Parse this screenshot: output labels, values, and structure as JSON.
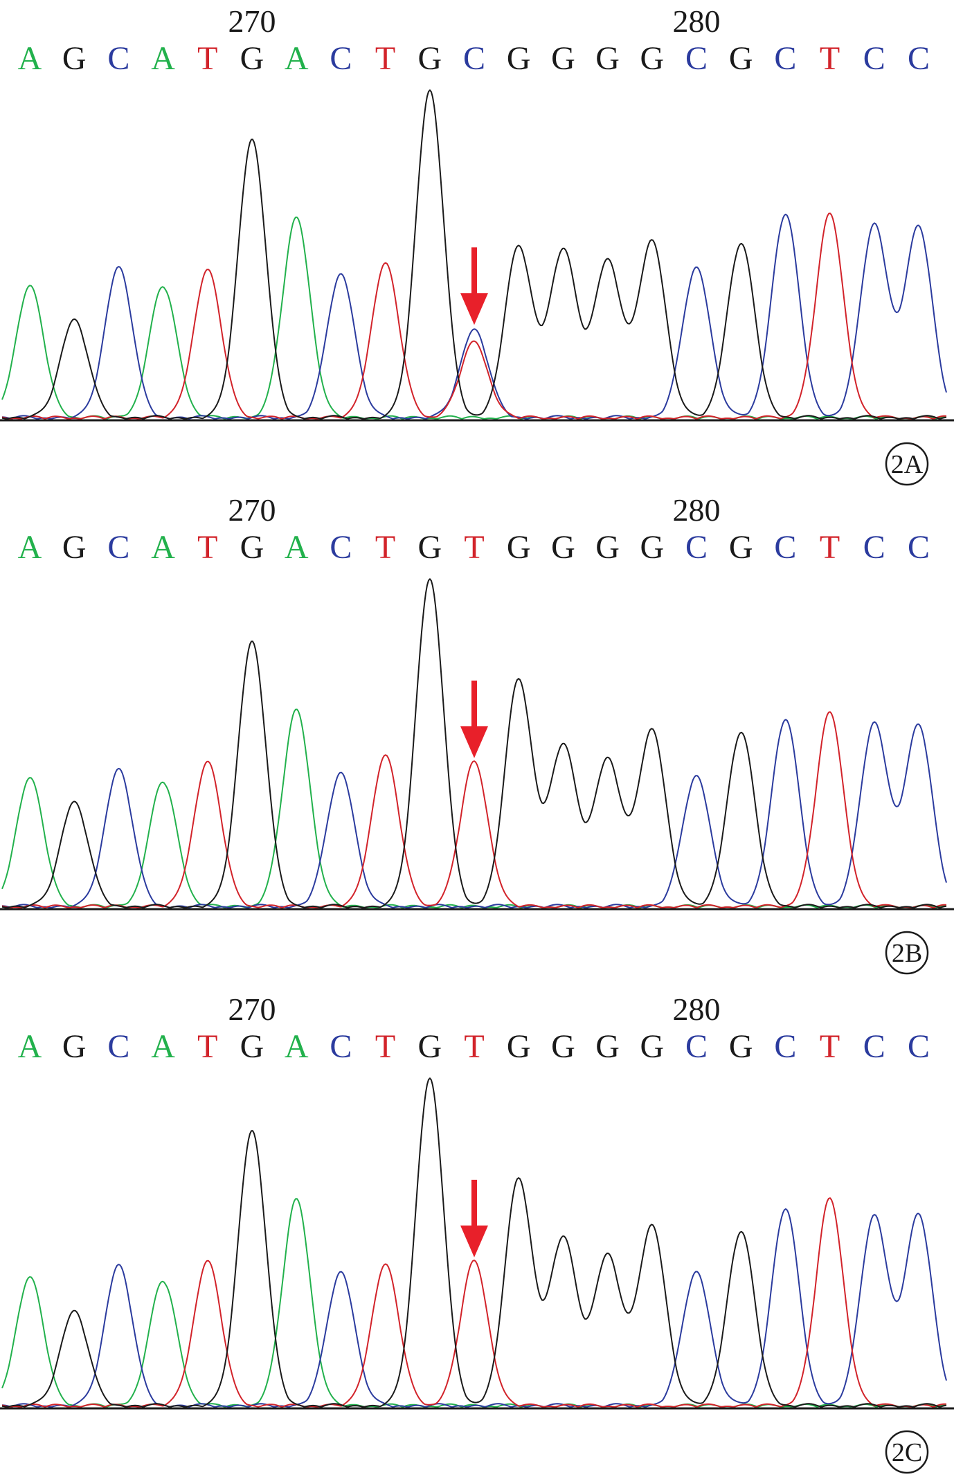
{
  "colors": {
    "A": "#22b14c",
    "G": "#1a1a1a",
    "C": "#2b3b9e",
    "T": "#d2232a",
    "arrow": "#e8202a",
    "baseline": "#1a1a1a"
  },
  "chart_data": [
    {
      "type": "line",
      "panel_label": "2A",
      "position_labels": [
        {
          "position": 270,
          "after_base_index": 5
        },
        {
          "position": 280,
          "after_base_index": 15
        }
      ],
      "bases": [
        "A",
        "G",
        "C",
        "A",
        "T",
        "G",
        "A",
        "C",
        "T",
        "G",
        "C",
        "G",
        "G",
        "G",
        "G",
        "C",
        "G",
        "C",
        "T",
        "C",
        "C"
      ],
      "peaks": [
        {
          "base": "A",
          "intensity": 0.4
        },
        {
          "base": "G",
          "intensity": 0.3
        },
        {
          "base": "C",
          "intensity": 0.46
        },
        {
          "base": "A",
          "intensity": 0.4
        },
        {
          "base": "T",
          "intensity": 0.45
        },
        {
          "base": "G",
          "intensity": 0.85
        },
        {
          "base": "A",
          "intensity": 0.61
        },
        {
          "base": "C",
          "intensity": 0.44
        },
        {
          "base": "T",
          "intensity": 0.47
        },
        {
          "base": "G",
          "intensity": 1.0
        },
        {
          "base": "C",
          "intensity": 0.27,
          "secondary": {
            "base": "T",
            "intensity": 0.23
          }
        },
        {
          "base": "G",
          "intensity": 0.52
        },
        {
          "base": "G",
          "intensity": 0.51
        },
        {
          "base": "G",
          "intensity": 0.48
        },
        {
          "base": "G",
          "intensity": 0.54
        },
        {
          "base": "C",
          "intensity": 0.46
        },
        {
          "base": "G",
          "intensity": 0.53
        },
        {
          "base": "C",
          "intensity": 0.62
        },
        {
          "base": "T",
          "intensity": 0.62
        },
        {
          "base": "C",
          "intensity": 0.59
        },
        {
          "base": "C",
          "intensity": 0.58
        }
      ],
      "arrow_at_base_index": 10
    },
    {
      "type": "line",
      "panel_label": "2B",
      "position_labels": [
        {
          "position": 270,
          "after_base_index": 5
        },
        {
          "position": 280,
          "after_base_index": 15
        }
      ],
      "bases": [
        "A",
        "G",
        "C",
        "A",
        "T",
        "G",
        "A",
        "C",
        "T",
        "G",
        "T",
        "G",
        "G",
        "G",
        "G",
        "C",
        "G",
        "C",
        "T",
        "C",
        "C"
      ],
      "peaks": [
        {
          "base": "A",
          "intensity": 0.39
        },
        {
          "base": "G",
          "intensity": 0.32
        },
        {
          "base": "C",
          "intensity": 0.42
        },
        {
          "base": "A",
          "intensity": 0.38
        },
        {
          "base": "T",
          "intensity": 0.44
        },
        {
          "base": "G",
          "intensity": 0.81
        },
        {
          "base": "A",
          "intensity": 0.6
        },
        {
          "base": "C",
          "intensity": 0.41
        },
        {
          "base": "T",
          "intensity": 0.46
        },
        {
          "base": "G",
          "intensity": 1.0
        },
        {
          "base": "T",
          "intensity": 0.44
        },
        {
          "base": "G",
          "intensity": 0.69
        },
        {
          "base": "G",
          "intensity": 0.49
        },
        {
          "base": "G",
          "intensity": 0.45
        },
        {
          "base": "G",
          "intensity": 0.54
        },
        {
          "base": "C",
          "intensity": 0.4
        },
        {
          "base": "G",
          "intensity": 0.53
        },
        {
          "base": "C",
          "intensity": 0.57
        },
        {
          "base": "T",
          "intensity": 0.59
        },
        {
          "base": "C",
          "intensity": 0.56
        },
        {
          "base": "C",
          "intensity": 0.55
        }
      ],
      "arrow_at_base_index": 10
    },
    {
      "type": "line",
      "panel_label": "2C",
      "position_labels": [
        {
          "position": 270,
          "after_base_index": 5
        },
        {
          "position": 280,
          "after_base_index": 15
        }
      ],
      "bases": [
        "A",
        "G",
        "C",
        "A",
        "T",
        "G",
        "A",
        "C",
        "T",
        "G",
        "T",
        "G",
        "G",
        "G",
        "G",
        "C",
        "G",
        "C",
        "T",
        "C",
        "C"
      ],
      "peaks": [
        {
          "base": "A",
          "intensity": 0.39
        },
        {
          "base": "G",
          "intensity": 0.29
        },
        {
          "base": "C",
          "intensity": 0.43
        },
        {
          "base": "A",
          "intensity": 0.38
        },
        {
          "base": "T",
          "intensity": 0.44
        },
        {
          "base": "G",
          "intensity": 0.84
        },
        {
          "base": "A",
          "intensity": 0.63
        },
        {
          "base": "C",
          "intensity": 0.41
        },
        {
          "base": "T",
          "intensity": 0.43
        },
        {
          "base": "G",
          "intensity": 1.0
        },
        {
          "base": "T",
          "intensity": 0.44
        },
        {
          "base": "G",
          "intensity": 0.69
        },
        {
          "base": "G",
          "intensity": 0.51
        },
        {
          "base": "G",
          "intensity": 0.46
        },
        {
          "base": "G",
          "intensity": 0.55
        },
        {
          "base": "C",
          "intensity": 0.41
        },
        {
          "base": "G",
          "intensity": 0.53
        },
        {
          "base": "C",
          "intensity": 0.6
        },
        {
          "base": "T",
          "intensity": 0.63
        },
        {
          "base": "C",
          "intensity": 0.58
        },
        {
          "base": "C",
          "intensity": 0.58
        }
      ],
      "arrow_at_base_index": 10
    }
  ]
}
